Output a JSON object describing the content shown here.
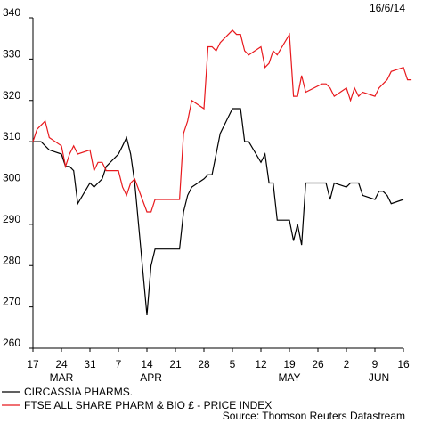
{
  "chart_data": {
    "type": "line",
    "date_label": "16/6/14",
    "source": "Source: Thomson Reuters Datastream",
    "ylim": [
      260,
      340
    ],
    "yticks": [
      260,
      270,
      280,
      290,
      300,
      310,
      320,
      330,
      340
    ],
    "xlim": [
      "2014-03-17",
      "2014-06-16"
    ],
    "xticks": [
      {
        "date": "2014-03-17",
        "label": "17"
      },
      {
        "date": "2014-03-24",
        "label": "24"
      },
      {
        "date": "2014-03-31",
        "label": "31"
      },
      {
        "date": "2014-04-07",
        "label": "7"
      },
      {
        "date": "2014-04-14",
        "label": "14"
      },
      {
        "date": "2014-04-21",
        "label": "21"
      },
      {
        "date": "2014-04-28",
        "label": "28"
      },
      {
        "date": "2014-05-05",
        "label": "5"
      },
      {
        "date": "2014-05-12",
        "label": "12"
      },
      {
        "date": "2014-05-19",
        "label": "19"
      },
      {
        "date": "2014-05-26",
        "label": "26"
      },
      {
        "date": "2014-06-02",
        "label": "2"
      },
      {
        "date": "2014-06-09",
        "label": "9"
      },
      {
        "date": "2014-06-16",
        "label": "16"
      }
    ],
    "months": [
      {
        "date": "2014-03-24",
        "label": "MAR"
      },
      {
        "date": "2014-04-15",
        "label": "APR"
      },
      {
        "date": "2014-05-19",
        "label": "MAY"
      },
      {
        "date": "2014-06-10",
        "label": "JUN"
      }
    ],
    "grid": false,
    "legend_position": "bottom-left",
    "series": [
      {
        "name": "CIRCASSIA PHARMS.",
        "color": "#000000",
        "points": [
          [
            "2014-03-17",
            310
          ],
          [
            "2014-03-18",
            310
          ],
          [
            "2014-03-19",
            310
          ],
          [
            "2014-03-20",
            309
          ],
          [
            "2014-03-21",
            308
          ],
          [
            "2014-03-24",
            307
          ],
          [
            "2014-03-25",
            304
          ],
          [
            "2014-03-26",
            304
          ],
          [
            "2014-03-27",
            303
          ],
          [
            "2014-03-28",
            295
          ],
          [
            "2014-03-31",
            300
          ],
          [
            "2014-04-01",
            299
          ],
          [
            "2014-04-02",
            300
          ],
          [
            "2014-04-03",
            301
          ],
          [
            "2014-04-04",
            304
          ],
          [
            "2014-04-07",
            307
          ],
          [
            "2014-04-08",
            309
          ],
          [
            "2014-04-09",
            311
          ],
          [
            "2014-04-10",
            307
          ],
          [
            "2014-04-11",
            300
          ],
          [
            "2014-04-14",
            268
          ],
          [
            "2014-04-15",
            280
          ],
          [
            "2014-04-16",
            284
          ],
          [
            "2014-04-17",
            284
          ],
          [
            "2014-04-22",
            284
          ],
          [
            "2014-04-23",
            293
          ],
          [
            "2014-04-24",
            297
          ],
          [
            "2014-04-25",
            299
          ],
          [
            "2014-04-28",
            301
          ],
          [
            "2014-04-29",
            302
          ],
          [
            "2014-04-30",
            302
          ],
          [
            "2014-05-01",
            307
          ],
          [
            "2014-05-02",
            312
          ],
          [
            "2014-05-05",
            318
          ],
          [
            "2014-05-06",
            318
          ],
          [
            "2014-05-07",
            318
          ],
          [
            "2014-05-08",
            310
          ],
          [
            "2014-05-09",
            310
          ],
          [
            "2014-05-12",
            305
          ],
          [
            "2014-05-13",
            307
          ],
          [
            "2014-05-14",
            300
          ],
          [
            "2014-05-15",
            300
          ],
          [
            "2014-05-16",
            291
          ],
          [
            "2014-05-19",
            291
          ],
          [
            "2014-05-20",
            286
          ],
          [
            "2014-05-21",
            290
          ],
          [
            "2014-05-22",
            285
          ],
          [
            "2014-05-23",
            300
          ],
          [
            "2014-05-27",
            300
          ],
          [
            "2014-05-28",
            300
          ],
          [
            "2014-05-29",
            296
          ],
          [
            "2014-05-30",
            300
          ],
          [
            "2014-06-02",
            299
          ],
          [
            "2014-06-03",
            300
          ],
          [
            "2014-06-04",
            300
          ],
          [
            "2014-06-05",
            300
          ],
          [
            "2014-06-06",
            297
          ],
          [
            "2014-06-09",
            296
          ],
          [
            "2014-06-10",
            298
          ],
          [
            "2014-06-11",
            298
          ],
          [
            "2014-06-12",
            297
          ],
          [
            "2014-06-13",
            295
          ],
          [
            "2014-06-16",
            296
          ]
        ]
      },
      {
        "name": "FTSE ALL SHARE PHARM & BIO £ - PRICE INDEX",
        "color": "#e8191d",
        "points": [
          [
            "2014-03-17",
            310
          ],
          [
            "2014-03-18",
            313
          ],
          [
            "2014-03-19",
            314
          ],
          [
            "2014-03-20",
            315
          ],
          [
            "2014-03-21",
            311
          ],
          [
            "2014-03-24",
            309
          ],
          [
            "2014-03-25",
            304
          ],
          [
            "2014-03-26",
            307
          ],
          [
            "2014-03-27",
            309
          ],
          [
            "2014-03-28",
            307
          ],
          [
            "2014-03-31",
            308
          ],
          [
            "2014-04-01",
            303
          ],
          [
            "2014-04-02",
            305
          ],
          [
            "2014-04-03",
            305
          ],
          [
            "2014-04-04",
            303
          ],
          [
            "2014-04-07",
            303
          ],
          [
            "2014-04-08",
            299
          ],
          [
            "2014-04-09",
            297
          ],
          [
            "2014-04-10",
            300
          ],
          [
            "2014-04-11",
            301
          ],
          [
            "2014-04-14",
            293
          ],
          [
            "2014-04-15",
            293
          ],
          [
            "2014-04-16",
            296
          ],
          [
            "2014-04-17",
            296
          ],
          [
            "2014-04-22",
            296
          ],
          [
            "2014-04-23",
            312
          ],
          [
            "2014-04-24",
            315
          ],
          [
            "2014-04-25",
            320
          ],
          [
            "2014-04-28",
            318
          ],
          [
            "2014-04-29",
            333
          ],
          [
            "2014-04-30",
            333
          ],
          [
            "2014-05-01",
            332
          ],
          [
            "2014-05-02",
            334
          ],
          [
            "2014-05-05",
            337
          ],
          [
            "2014-05-06",
            336
          ],
          [
            "2014-05-07",
            336
          ],
          [
            "2014-05-08",
            332
          ],
          [
            "2014-05-09",
            331
          ],
          [
            "2014-05-12",
            333
          ],
          [
            "2014-05-13",
            328
          ],
          [
            "2014-05-14",
            329
          ],
          [
            "2014-05-15",
            332
          ],
          [
            "2014-05-16",
            331
          ],
          [
            "2014-05-19",
            336
          ],
          [
            "2014-05-20",
            321
          ],
          [
            "2014-05-21",
            321
          ],
          [
            "2014-05-22",
            326
          ],
          [
            "2014-05-23",
            322
          ],
          [
            "2014-05-27",
            324
          ],
          [
            "2014-05-28",
            324
          ],
          [
            "2014-05-29",
            323
          ],
          [
            "2014-05-30",
            321
          ],
          [
            "2014-06-02",
            323
          ],
          [
            "2014-06-03",
            320
          ],
          [
            "2014-06-04",
            323
          ],
          [
            "2014-06-05",
            321
          ],
          [
            "2014-06-06",
            322
          ],
          [
            "2014-06-09",
            321
          ],
          [
            "2014-06-10",
            323
          ],
          [
            "2014-06-11",
            324
          ],
          [
            "2014-06-12",
            325
          ],
          [
            "2014-06-13",
            327
          ],
          [
            "2014-06-16",
            328
          ],
          [
            "2014-06-17",
            325
          ],
          [
            "2014-06-18",
            325
          ]
        ]
      }
    ]
  }
}
